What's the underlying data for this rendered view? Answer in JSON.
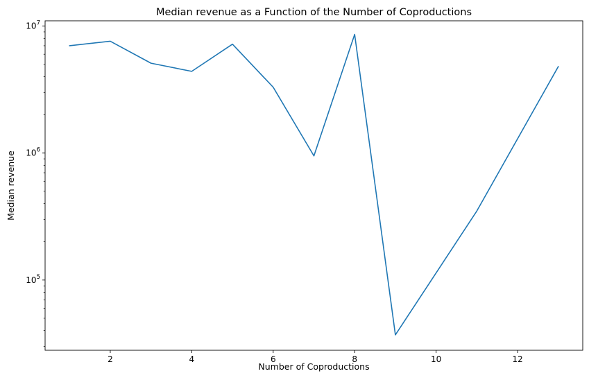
{
  "chart_data": {
    "type": "line",
    "title": "Median revenue as a Function of the Number of Coproductions",
    "xlabel": "Number of Coproductions",
    "ylabel": "Median revenue",
    "yscale": "log",
    "xlim": [
      0.4,
      13.6
    ],
    "ylim": [
      28000,
      11000000
    ],
    "x_ticks": [
      2,
      4,
      6,
      8,
      10,
      12
    ],
    "x_tick_labels": [
      "2",
      "4",
      "6",
      "8",
      "10",
      "12"
    ],
    "y_ticks": [
      100000,
      1000000,
      10000000
    ],
    "y_tick_labels": [
      {
        "base": "10",
        "exp": "5"
      },
      {
        "base": "10",
        "exp": "6"
      },
      {
        "base": "10",
        "exp": "7"
      }
    ],
    "grid": false,
    "line_color": "#1f77b4",
    "series": [
      {
        "x": [
          1,
          2,
          3,
          4,
          5,
          6,
          7,
          8,
          9,
          11,
          13
        ],
        "values": [
          7000000,
          7600000,
          5100000,
          4400000,
          7200000,
          3300000,
          950000,
          8600000,
          37000,
          350000,
          4800000
        ]
      }
    ]
  }
}
